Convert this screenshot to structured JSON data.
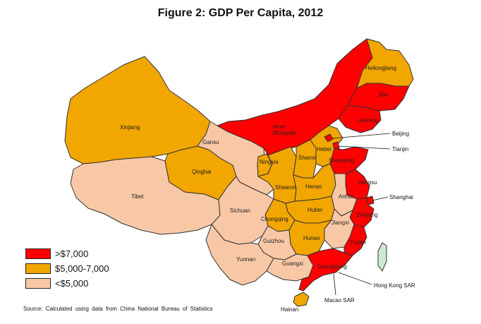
{
  "title": "Figure  2: GDP  Per Capita, 2012",
  "source": "Source:   Calculated  using data  from China National  Bureau of Statistics",
  "colors": {
    "high": "#ff0000",
    "mid": "#f2a600",
    "low": "#f8c8a6",
    "taiwan": "#cfe8d0",
    "border": "#333333"
  },
  "legend": [
    {
      "label": ">$7,000",
      "color": "#ff0000"
    },
    {
      "label": "$5,000-7,000",
      "color": "#f2a600"
    },
    {
      "label": "<$5,000",
      "color": "#f8c8a6"
    }
  ],
  "provinces": [
    {
      "id": "xinjiang",
      "label": "Xinjiang",
      "category": "mid"
    },
    {
      "id": "tibet",
      "label": "Tibet",
      "category": "low"
    },
    {
      "id": "qinghai",
      "label": "Qinghai",
      "category": "mid"
    },
    {
      "id": "gansu",
      "label": "Gansu",
      "category": "low"
    },
    {
      "id": "inner-mongolia",
      "label": "Inner\nMongolia",
      "category": "high"
    },
    {
      "id": "heilongjiang",
      "label": "Heilongjiang",
      "category": "mid"
    },
    {
      "id": "jilin",
      "label": "Jilin",
      "category": "high"
    },
    {
      "id": "liaoning",
      "label": "Liaoning",
      "category": "high"
    },
    {
      "id": "ningxia",
      "label": "Ningxia",
      "category": "mid"
    },
    {
      "id": "shaanxi",
      "label": "Shaanxi",
      "category": "mid"
    },
    {
      "id": "shanxi",
      "label": "Shanxi",
      "category": "mid"
    },
    {
      "id": "hebei",
      "label": "Hebei",
      "category": "mid"
    },
    {
      "id": "shandong",
      "label": "Shandong",
      "category": "high"
    },
    {
      "id": "henan",
      "label": "Henan",
      "category": "mid"
    },
    {
      "id": "sichuan",
      "label": "Sichuan",
      "category": "low"
    },
    {
      "id": "chongqing",
      "label": "Chongqing",
      "category": "mid"
    },
    {
      "id": "hubei",
      "label": "Hubei",
      "category": "mid"
    },
    {
      "id": "anhui",
      "label": "Anhui",
      "category": "low"
    },
    {
      "id": "jiangsu",
      "label": "Jiangsu",
      "category": "high"
    },
    {
      "id": "zhejiang",
      "label": "Zhejiang",
      "category": "high"
    },
    {
      "id": "jiangxi",
      "label": "Jiangxi",
      "category": "low"
    },
    {
      "id": "hunan",
      "label": "Hunan",
      "category": "mid"
    },
    {
      "id": "fujian",
      "label": "Fujian",
      "category": "high"
    },
    {
      "id": "guizhou",
      "label": "Guizhou",
      "category": "low"
    },
    {
      "id": "yunnan",
      "label": "Yunnan",
      "category": "low"
    },
    {
      "id": "guangxi",
      "label": "Guangxi",
      "category": "low"
    },
    {
      "id": "guangdong",
      "label": "Guangdong",
      "category": "high"
    },
    {
      "id": "hainan",
      "label": "Hainan",
      "category": "mid"
    },
    {
      "id": "beijing",
      "label": "Beijing",
      "category": "high"
    },
    {
      "id": "tianjin",
      "label": "Tianjin",
      "category": "high"
    },
    {
      "id": "shanghai",
      "label": "Shanghai",
      "category": "high"
    },
    {
      "id": "taiwan",
      "label": "",
      "category": "taiwan"
    }
  ],
  "callouts": {
    "beijing": "Beijing",
    "tianjin": "Tianjin",
    "shanghai": "Shanghai",
    "hongkong": "Hong Kong SAR",
    "macao": "Macao SAR",
    "hainan": "Hainan"
  }
}
